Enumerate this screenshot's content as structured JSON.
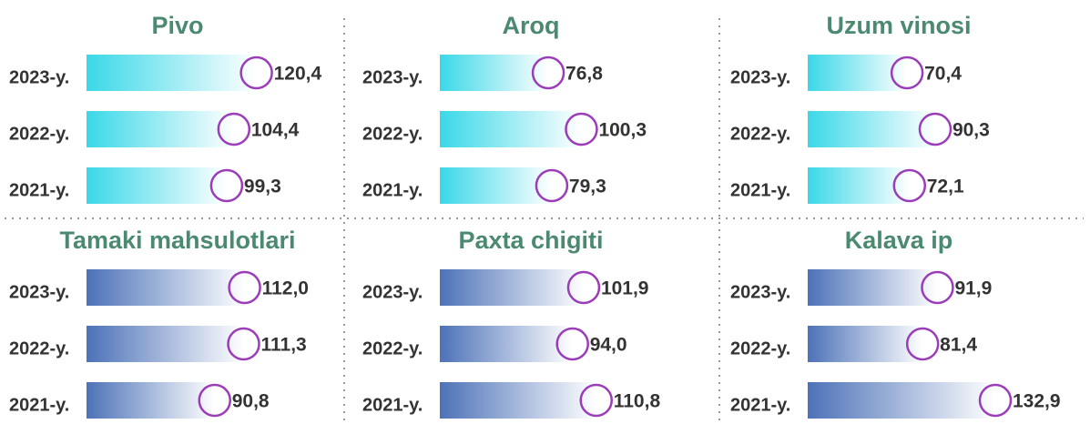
{
  "chart_data": [
    {
      "type": "bar",
      "title": "Pivo",
      "categories": [
        "2023-y.",
        "2022-y.",
        "2021-y."
      ],
      "values": [
        120.4,
        104.4,
        99.3
      ],
      "value_labels": [
        "120,4",
        "104,4",
        "99,3"
      ],
      "color": "#3ad8e8"
    },
    {
      "type": "bar",
      "title": "Aroq",
      "categories": [
        "2023-y.",
        "2022-y.",
        "2021-y."
      ],
      "values": [
        76.8,
        100.3,
        79.3
      ],
      "value_labels": [
        "76,8",
        "100,3",
        "79,3"
      ],
      "color": "#3ad8e8"
    },
    {
      "type": "bar",
      "title": "Uzum vinosi",
      "categories": [
        "2023-y.",
        "2022-y.",
        "2021-y."
      ],
      "values": [
        70.4,
        90.3,
        72.1
      ],
      "value_labels": [
        "70,4",
        "90,3",
        "72,1"
      ],
      "color": "#3ad8e8"
    },
    {
      "type": "bar",
      "title": "Tamaki mahsulotlari",
      "categories": [
        "2023-y.",
        "2022-y.",
        "2021-y."
      ],
      "values": [
        112.0,
        111.3,
        90.8
      ],
      "value_labels": [
        "112,0",
        "111,3",
        "90,8"
      ],
      "color": "#4d72b8"
    },
    {
      "type": "bar",
      "title": "Paxta chigiti",
      "categories": [
        "2023-y.",
        "2022-y.",
        "2021-y."
      ],
      "values": [
        101.9,
        94.0,
        110.8
      ],
      "value_labels": [
        "101,9",
        "94,0",
        "110,8"
      ],
      "color": "#4d72b8"
    },
    {
      "type": "bar",
      "title": "Kalava ip",
      "categories": [
        "2023-y.",
        "2022-y.",
        "2021-y."
      ],
      "values": [
        91.9,
        81.4,
        132.9
      ],
      "value_labels": [
        "91,9",
        "81,4",
        "132,9"
      ],
      "color": "#4d72b8"
    }
  ]
}
